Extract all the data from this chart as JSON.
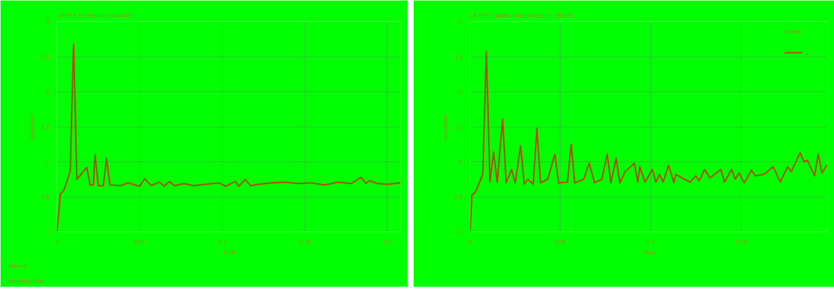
{
  "chart_data": [
    {
      "type": "line",
      "title": "LR FFT 4.4 Impulse response",
      "xlabel": "Time",
      "ylabel": "Amplitude",
      "annotations": [
        "Interval",
        "Sample period"
      ],
      "xlim": [
        0,
        0.208
      ],
      "ylim": [
        0,
        3
      ],
      "xticks": [
        0,
        0.05,
        0.1,
        0.15,
        0.2
      ],
      "yticks": [
        0,
        0.5,
        1,
        1.5,
        2,
        2.5,
        3
      ],
      "grid": true,
      "legend": false,
      "series": [
        {
          "color": "#b04a08",
          "x": [
            0,
            0.002,
            0.004,
            0.006,
            0.008,
            0.01,
            0.012,
            0.018,
            0.02,
            0.022,
            0.023,
            0.025,
            0.028,
            0.03,
            0.032,
            0.0385,
            0.043,
            0.05,
            0.053,
            0.057,
            0.062,
            0.065,
            0.068,
            0.071,
            0.077,
            0.083,
            0.09,
            0.098,
            0.102,
            0.108,
            0.11,
            0.114,
            0.117,
            0.122,
            0.13,
            0.138,
            0.146,
            0.154,
            0.162,
            0.17,
            0.178,
            0.184,
            0.187,
            0.189,
            0.194,
            0.2,
            0.208
          ],
          "values": [
            0,
            0.54,
            0.59,
            0.72,
            0.87,
            2.68,
            0.75,
            0.92,
            0.67,
            0.67,
            1.1,
            0.66,
            0.66,
            1.05,
            0.67,
            0.66,
            0.7,
            0.65,
            0.76,
            0.66,
            0.71,
            0.65,
            0.72,
            0.66,
            0.69,
            0.66,
            0.68,
            0.7,
            0.65,
            0.72,
            0.65,
            0.75,
            0.66,
            0.68,
            0.7,
            0.71,
            0.69,
            0.7,
            0.67,
            0.71,
            0.69,
            0.78,
            0.69,
            0.73,
            0.69,
            0.68,
            0.7
          ]
        }
      ]
    },
    {
      "type": "line",
      "title": "LR FFT impulse response by LR method",
      "xlabel": "Time",
      "ylabel": "Amplitude",
      "legend_title": "Series",
      "xlim": [
        0,
        0.198
      ],
      "ylim": [
        0,
        3
      ],
      "xticks": [
        0,
        0.05,
        0.1,
        0.15
      ],
      "yticks": [
        0,
        0.5,
        1,
        1.5,
        2,
        2.5,
        3
      ],
      "grid": true,
      "legend": "top right",
      "series": [
        {
          "name": "1",
          "color": "#b04a08",
          "x": [
            0,
            0.001,
            0.003,
            0.007,
            0.009,
            0.011,
            0.013,
            0.015,
            0.018,
            0.02,
            0.023,
            0.025,
            0.028,
            0.03,
            0.032,
            0.035,
            0.037,
            0.039,
            0.043,
            0.047,
            0.049,
            0.054,
            0.056,
            0.058,
            0.063,
            0.066,
            0.069,
            0.073,
            0.076,
            0.078,
            0.081,
            0.083,
            0.086,
            0.091,
            0.093,
            0.094,
            0.097,
            0.101,
            0.103,
            0.105,
            0.107,
            0.11,
            0.113,
            0.114,
            0.119,
            0.122,
            0.125,
            0.127,
            0.13,
            0.133,
            0.139,
            0.141,
            0.145,
            0.147,
            0.149,
            0.152,
            0.156,
            0.158,
            0.163,
            0.168,
            0.172,
            0.176,
            0.178,
            0.183,
            0.185,
            0.187,
            0.191,
            0.193,
            0.195,
            0.198
          ],
          "values": [
            0,
            0.52,
            0.57,
            0.82,
            2.57,
            0.71,
            1.14,
            0.71,
            1.61,
            0.7,
            0.89,
            0.7,
            1.23,
            0.68,
            0.75,
            0.68,
            1.48,
            0.7,
            0.75,
            1.11,
            0.7,
            0.71,
            1.25,
            0.7,
            0.75,
            0.98,
            0.7,
            0.75,
            1.11,
            0.7,
            1.05,
            0.7,
            0.86,
            0.98,
            0.71,
            0.93,
            0.71,
            0.89,
            0.71,
            0.82,
            0.71,
            0.95,
            0.7,
            0.82,
            0.75,
            0.71,
            0.8,
            0.73,
            0.89,
            0.77,
            0.89,
            0.71,
            0.89,
            0.75,
            0.84,
            0.7,
            0.88,
            0.8,
            0.82,
            0.93,
            0.71,
            0.93,
            0.86,
            1.13,
            1.0,
            1.02,
            0.8,
            1.11,
            0.84,
            0.96
          ]
        }
      ]
    }
  ]
}
